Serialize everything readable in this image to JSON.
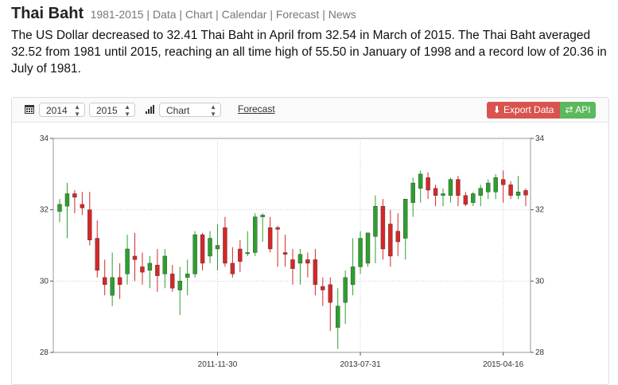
{
  "header": {
    "title": "Thai Baht",
    "range": "1981-2015",
    "links": [
      "Data",
      "Chart",
      "Calendar",
      "Forecast",
      "News"
    ]
  },
  "description": "The US Dollar decreased to 32.41 Thai Baht in April from 32.54 in March of 2015. The Thai Baht averaged 32.52 from 1981 until 2015, reaching an all time high of 55.50 in January of 1998 and a record low of 20.36 in July of 1981.",
  "toolbar": {
    "start_year": "2014",
    "end_year": "2015",
    "chart_type": "Chart",
    "forecast_label": "Forecast",
    "export_label": "Export Data",
    "api_label": "API"
  },
  "colors": {
    "up": "#2ca02c",
    "down": "#d62728",
    "export": "#d9534f",
    "api": "#5cb85c"
  },
  "chart_data": {
    "type": "candlestick",
    "ylim": [
      28,
      34
    ],
    "yticks": [
      28,
      30,
      32,
      34
    ],
    "x_tick_labels": [
      "2011-11-30",
      "2013-07-31",
      "2015-04-16"
    ],
    "x_tick_index": [
      21,
      40,
      59
    ],
    "grid": true,
    "candles": [
      {
        "o": 31.95,
        "h": 32.3,
        "l": 31.65,
        "c": 32.15
      },
      {
        "o": 32.1,
        "h": 32.75,
        "l": 31.2,
        "c": 32.45
      },
      {
        "o": 32.45,
        "h": 32.55,
        "l": 31.9,
        "c": 32.35
      },
      {
        "o": 32.15,
        "h": 32.5,
        "l": 31.85,
        "c": 32.05
      },
      {
        "o": 32.0,
        "h": 32.5,
        "l": 31.0,
        "c": 31.15
      },
      {
        "o": 31.2,
        "h": 31.7,
        "l": 30.1,
        "c": 30.3
      },
      {
        "o": 30.1,
        "h": 30.6,
        "l": 29.6,
        "c": 29.9
      },
      {
        "o": 29.6,
        "h": 30.8,
        "l": 29.3,
        "c": 30.1
      },
      {
        "o": 30.1,
        "h": 30.5,
        "l": 29.5,
        "c": 29.9
      },
      {
        "o": 30.2,
        "h": 31.3,
        "l": 29.9,
        "c": 30.9
      },
      {
        "o": 30.7,
        "h": 31.35,
        "l": 30.0,
        "c": 30.6
      },
      {
        "o": 30.4,
        "h": 30.8,
        "l": 29.9,
        "c": 30.25
      },
      {
        "o": 30.3,
        "h": 30.7,
        "l": 29.8,
        "c": 30.5
      },
      {
        "o": 30.45,
        "h": 30.9,
        "l": 29.7,
        "c": 30.15
      },
      {
        "o": 30.2,
        "h": 30.9,
        "l": 29.8,
        "c": 30.7
      },
      {
        "o": 30.2,
        "h": 30.45,
        "l": 29.7,
        "c": 29.8
      },
      {
        "o": 29.75,
        "h": 30.4,
        "l": 29.05,
        "c": 30.0
      },
      {
        "o": 30.1,
        "h": 30.6,
        "l": 29.6,
        "c": 30.2
      },
      {
        "o": 30.2,
        "h": 31.4,
        "l": 30.1,
        "c": 31.3
      },
      {
        "o": 31.3,
        "h": 31.35,
        "l": 30.3,
        "c": 30.5
      },
      {
        "o": 30.7,
        "h": 31.4,
        "l": 30.5,
        "c": 31.2
      },
      {
        "o": 30.9,
        "h": 31.6,
        "l": 30.3,
        "c": 31.0
      },
      {
        "o": 31.5,
        "h": 31.8,
        "l": 30.4,
        "c": 30.5
      },
      {
        "o": 30.5,
        "h": 30.95,
        "l": 30.1,
        "c": 30.2
      },
      {
        "o": 30.9,
        "h": 31.15,
        "l": 30.25,
        "c": 30.55
      },
      {
        "o": 30.8,
        "h": 31.4,
        "l": 30.7,
        "c": 30.8
      },
      {
        "o": 30.8,
        "h": 31.9,
        "l": 30.7,
        "c": 31.8
      },
      {
        "o": 31.8,
        "h": 31.9,
        "l": 31.1,
        "c": 31.85
      },
      {
        "o": 31.5,
        "h": 31.8,
        "l": 30.8,
        "c": 30.9
      },
      {
        "o": 31.5,
        "h": 31.55,
        "l": 30.4,
        "c": 31.45
      },
      {
        "o": 30.8,
        "h": 31.3,
        "l": 30.4,
        "c": 30.75
      },
      {
        "o": 30.6,
        "h": 30.9,
        "l": 29.9,
        "c": 30.35
      },
      {
        "o": 30.5,
        "h": 30.9,
        "l": 29.9,
        "c": 30.75
      },
      {
        "o": 30.6,
        "h": 30.8,
        "l": 30.1,
        "c": 30.5
      },
      {
        "o": 30.6,
        "h": 30.9,
        "l": 29.6,
        "c": 29.9
      },
      {
        "o": 29.85,
        "h": 30.1,
        "l": 29.3,
        "c": 29.75
      },
      {
        "o": 29.9,
        "h": 30.1,
        "l": 28.6,
        "c": 29.4
      },
      {
        "o": 28.7,
        "h": 29.8,
        "l": 28.1,
        "c": 29.3
      },
      {
        "o": 29.4,
        "h": 30.3,
        "l": 28.8,
        "c": 30.1
      },
      {
        "o": 29.9,
        "h": 31.2,
        "l": 29.6,
        "c": 30.4
      },
      {
        "o": 30.4,
        "h": 31.4,
        "l": 30.2,
        "c": 31.2
      },
      {
        "o": 30.5,
        "h": 31.3,
        "l": 30.4,
        "c": 31.35
      },
      {
        "o": 31.25,
        "h": 32.4,
        "l": 30.5,
        "c": 32.1
      },
      {
        "o": 32.1,
        "h": 32.3,
        "l": 30.6,
        "c": 30.9
      },
      {
        "o": 31.6,
        "h": 32.0,
        "l": 30.4,
        "c": 30.7
      },
      {
        "o": 31.4,
        "h": 31.9,
        "l": 30.7,
        "c": 31.1
      },
      {
        "o": 31.2,
        "h": 32.3,
        "l": 30.6,
        "c": 32.3
      },
      {
        "o": 32.2,
        "h": 32.9,
        "l": 31.8,
        "c": 32.75
      },
      {
        "o": 32.6,
        "h": 33.1,
        "l": 32.2,
        "c": 33.0
      },
      {
        "o": 32.9,
        "h": 33.05,
        "l": 32.3,
        "c": 32.55
      },
      {
        "o": 32.6,
        "h": 32.7,
        "l": 32.1,
        "c": 32.4
      },
      {
        "o": 32.4,
        "h": 32.6,
        "l": 32.1,
        "c": 32.45
      },
      {
        "o": 32.4,
        "h": 32.9,
        "l": 32.2,
        "c": 32.85
      },
      {
        "o": 32.85,
        "h": 32.95,
        "l": 32.1,
        "c": 32.4
      },
      {
        "o": 32.4,
        "h": 32.5,
        "l": 32.1,
        "c": 32.15
      },
      {
        "o": 32.2,
        "h": 32.5,
        "l": 32.1,
        "c": 32.45
      },
      {
        "o": 32.4,
        "h": 32.7,
        "l": 32.1,
        "c": 32.6
      },
      {
        "o": 32.5,
        "h": 32.85,
        "l": 32.3,
        "c": 32.75
      },
      {
        "o": 32.5,
        "h": 33.0,
        "l": 32.3,
        "c": 32.9
      },
      {
        "o": 32.85,
        "h": 33.1,
        "l": 32.2,
        "c": 32.7
      },
      {
        "o": 32.7,
        "h": 32.8,
        "l": 32.3,
        "c": 32.4
      },
      {
        "o": 32.4,
        "h": 32.95,
        "l": 32.3,
        "c": 32.5
      },
      {
        "o": 32.54,
        "h": 32.6,
        "l": 32.1,
        "c": 32.41
      }
    ]
  }
}
